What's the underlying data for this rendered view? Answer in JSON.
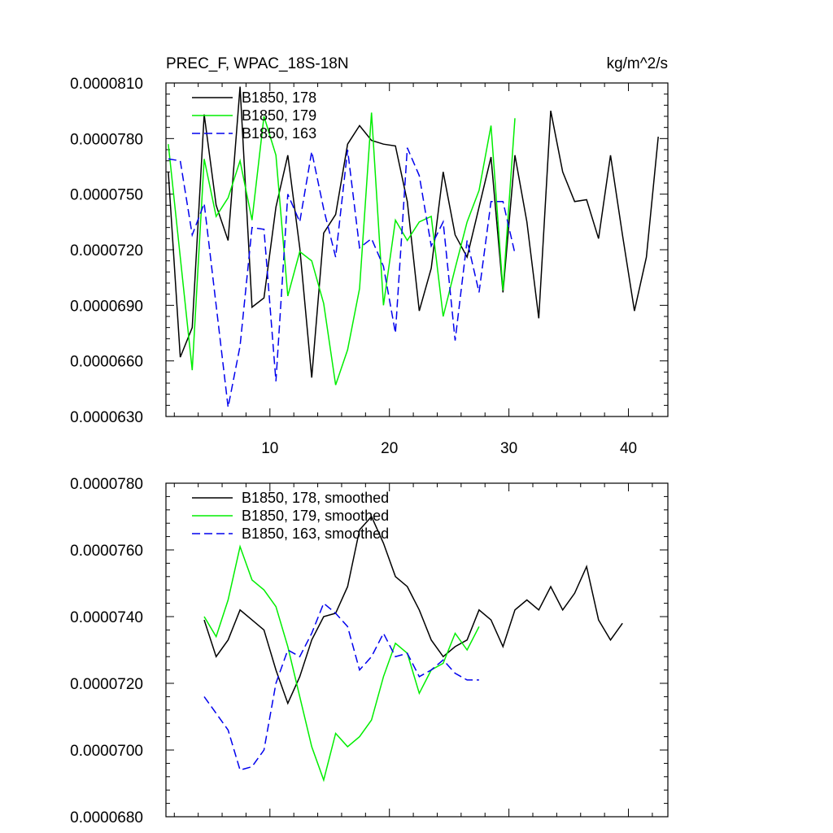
{
  "chart_data": [
    {
      "type": "line",
      "title_left": "PREC_F, WPAC_18S-18N",
      "title_right": "kg/m^2/s",
      "xlabel": "",
      "ylabel": "",
      "xlim": [
        1.3,
        43.3
      ],
      "ylim": [
        6.3e-05,
        8.1e-05
      ],
      "yticks": [
        6.3e-05,
        6.6e-05,
        6.9e-05,
        7.2e-05,
        7.5e-05,
        7.8e-05,
        8.1e-05
      ],
      "ytick_labels": [
        "0.0000630",
        "0.0000660",
        "0.0000690",
        "0.0000720",
        "0.0000750",
        "0.0000780",
        "0.0000810"
      ],
      "xticks": [
        10,
        20,
        30,
        40
      ],
      "xtick_labels": [
        "10",
        "20",
        "30",
        "40"
      ],
      "show_xtick_labels": true,
      "legend_position": "top-left",
      "series": [
        {
          "name": "B1850, 178",
          "color": "#000000",
          "dash": "solid",
          "x": [
            1.5,
            2.5,
            3.5,
            4.5,
            5.5,
            6.5,
            7.5,
            8.5,
            9.5,
            10.5,
            11.5,
            12.5,
            13.5,
            14.5,
            15.5,
            16.5,
            17.5,
            18.5,
            19.5,
            20.5,
            21.5,
            22.5,
            23.5,
            24.5,
            25.5,
            26.5,
            27.5,
            28.5,
            29.5,
            30.5,
            31.5,
            32.5,
            33.5,
            34.5,
            35.5,
            36.5,
            37.5,
            38.5,
            39.5,
            40.5,
            41.5,
            42.5
          ],
          "values": [
            7.62e-05,
            6.62e-05,
            6.78e-05,
            7.93e-05,
            7.44e-05,
            7.25e-05,
            8.08e-05,
            6.89e-05,
            6.94e-05,
            7.43e-05,
            7.71e-05,
            7.21e-05,
            6.51e-05,
            7.29e-05,
            7.39e-05,
            7.77e-05,
            7.87e-05,
            7.79e-05,
            7.77e-05,
            7.76e-05,
            7.46e-05,
            6.87e-05,
            7.1e-05,
            7.62e-05,
            7.28e-05,
            7.16e-05,
            7.43e-05,
            7.7e-05,
            6.97e-05,
            7.71e-05,
            7.35e-05,
            6.83e-05,
            7.95e-05,
            7.62e-05,
            7.46e-05,
            7.47e-05,
            7.26e-05,
            7.71e-05,
            7.28e-05,
            6.87e-05,
            7.16e-05,
            7.81e-05
          ]
        },
        {
          "name": "B1850, 179",
          "color": "#00ee00",
          "dash": "solid",
          "x": [
            1.5,
            2.5,
            3.5,
            4.5,
            5.5,
            6.5,
            7.5,
            8.5,
            9.5,
            10.5,
            11.5,
            12.5,
            13.5,
            14.5,
            15.5,
            16.5,
            17.5,
            18.5,
            19.5,
            20.5,
            21.5,
            22.5,
            23.5,
            24.5,
            25.5,
            26.5,
            27.5,
            28.5,
            29.5,
            30.5
          ],
          "values": [
            7.77e-05,
            7.16e-05,
            6.55e-05,
            7.69e-05,
            7.38e-05,
            7.48e-05,
            7.68e-05,
            7.36e-05,
            7.92e-05,
            7.71e-05,
            6.95e-05,
            7.19e-05,
            7.14e-05,
            6.91e-05,
            6.47e-05,
            6.66e-05,
            6.99e-05,
            7.94e-05,
            6.9e-05,
            7.36e-05,
            7.25e-05,
            7.35e-05,
            7.38e-05,
            6.84e-05,
            7.1e-05,
            7.35e-05,
            7.52e-05,
            7.87e-05,
            6.98e-05,
            7.91e-05
          ]
        },
        {
          "name": "B1850, 163",
          "color": "#0000ee",
          "dash": "dashed",
          "x": [
            1.5,
            2.5,
            3.5,
            4.5,
            5.5,
            6.5,
            7.5,
            8.5,
            9.5,
            10.5,
            11.5,
            12.5,
            13.5,
            14.5,
            15.5,
            16.5,
            17.5,
            18.5,
            19.5,
            20.5,
            21.5,
            22.5,
            23.5,
            24.5,
            25.5,
            26.5,
            27.5,
            28.5,
            29.5,
            30.5
          ],
          "values": [
            7.69e-05,
            7.68e-05,
            7.28e-05,
            7.45e-05,
            6.9e-05,
            6.35e-05,
            6.68e-05,
            7.32e-05,
            7.31e-05,
            6.49e-05,
            7.5e-05,
            7.35e-05,
            7.73e-05,
            7.42e-05,
            7.16e-05,
            7.74e-05,
            7.21e-05,
            7.26e-05,
            7.11e-05,
            6.75e-05,
            7.75e-05,
            7.6e-05,
            7.22e-05,
            7.35e-05,
            6.71e-05,
            7.25e-05,
            6.97e-05,
            7.46e-05,
            7.46e-05,
            7.18e-05
          ]
        }
      ]
    },
    {
      "type": "line",
      "title_left": "",
      "title_right": "",
      "xlabel": "",
      "ylabel": "",
      "xlim": [
        1.3,
        43.3
      ],
      "ylim": [
        6.8e-05,
        7.8e-05
      ],
      "yticks": [
        6.8e-05,
        7e-05,
        7.2e-05,
        7.4e-05,
        7.6e-05,
        7.8e-05
      ],
      "ytick_labels": [
        "0.0000680",
        "0.0000700",
        "0.0000720",
        "0.0000740",
        "0.0000760",
        "0.0000780"
      ],
      "xticks": [
        10,
        20,
        30,
        40
      ],
      "xtick_labels": [
        "10",
        "20",
        "30",
        "40"
      ],
      "show_xtick_labels": false,
      "legend_position": "top-left",
      "series": [
        {
          "name": "B1850, 178, smoothed",
          "color": "#000000",
          "dash": "solid",
          "x": [
            4.5,
            5.5,
            6.5,
            7.5,
            8.5,
            9.5,
            10.5,
            11.5,
            12.5,
            13.5,
            14.5,
            15.5,
            16.5,
            17.5,
            18.5,
            19.5,
            20.5,
            21.5,
            22.5,
            23.5,
            24.5,
            25.5,
            26.5,
            27.5,
            28.5,
            29.5,
            30.5,
            31.5,
            32.5,
            33.5,
            34.5,
            35.5,
            36.5,
            37.5,
            38.5,
            39.5
          ],
          "values": [
            7.39e-05,
            7.28e-05,
            7.33e-05,
            7.42e-05,
            7.39e-05,
            7.36e-05,
            7.24e-05,
            7.14e-05,
            7.22e-05,
            7.33e-05,
            7.4e-05,
            7.41e-05,
            7.49e-05,
            7.66e-05,
            7.7e-05,
            7.62e-05,
            7.52e-05,
            7.49e-05,
            7.42e-05,
            7.33e-05,
            7.28e-05,
            7.31e-05,
            7.33e-05,
            7.42e-05,
            7.39e-05,
            7.31e-05,
            7.42e-05,
            7.45e-05,
            7.42e-05,
            7.49e-05,
            7.42e-05,
            7.47e-05,
            7.55e-05,
            7.39e-05,
            7.33e-05,
            7.38e-05
          ]
        },
        {
          "name": "B1850, 179, smoothed",
          "color": "#00ee00",
          "dash": "solid",
          "x": [
            4.5,
            5.5,
            6.5,
            7.5,
            8.5,
            9.5,
            10.5,
            11.5,
            12.5,
            13.5,
            14.5,
            15.5,
            16.5,
            17.5,
            18.5,
            19.5,
            20.5,
            21.5,
            22.5,
            23.5,
            24.5,
            25.5,
            26.5,
            27.5
          ],
          "values": [
            7.4e-05,
            7.34e-05,
            7.45e-05,
            7.61e-05,
            7.51e-05,
            7.48e-05,
            7.43e-05,
            7.31e-05,
            7.16e-05,
            7.01e-05,
            6.91e-05,
            7.05e-05,
            7.01e-05,
            7.04e-05,
            7.09e-05,
            7.22e-05,
            7.32e-05,
            7.29e-05,
            7.17e-05,
            7.24e-05,
            7.26e-05,
            7.35e-05,
            7.3e-05,
            7.37e-05
          ]
        },
        {
          "name": "B1850, 163, smoothed",
          "color": "#0000ee",
          "dash": "dashed",
          "x": [
            4.5,
            5.5,
            6.5,
            7.5,
            8.5,
            9.5,
            10.5,
            11.5,
            12.5,
            13.5,
            14.5,
            15.5,
            16.5,
            17.5,
            18.5,
            19.5,
            20.5,
            21.5,
            22.5,
            23.5,
            24.5,
            25.5,
            26.5,
            27.5
          ],
          "values": [
            7.16e-05,
            7.11e-05,
            7.06e-05,
            6.94e-05,
            6.95e-05,
            7e-05,
            7.2e-05,
            7.3e-05,
            7.28e-05,
            7.35e-05,
            7.44e-05,
            7.41e-05,
            7.37e-05,
            7.24e-05,
            7.28e-05,
            7.35e-05,
            7.28e-05,
            7.29e-05,
            7.22e-05,
            7.24e-05,
            7.27e-05,
            7.23e-05,
            7.21e-05,
            7.21e-05
          ]
        }
      ]
    }
  ]
}
